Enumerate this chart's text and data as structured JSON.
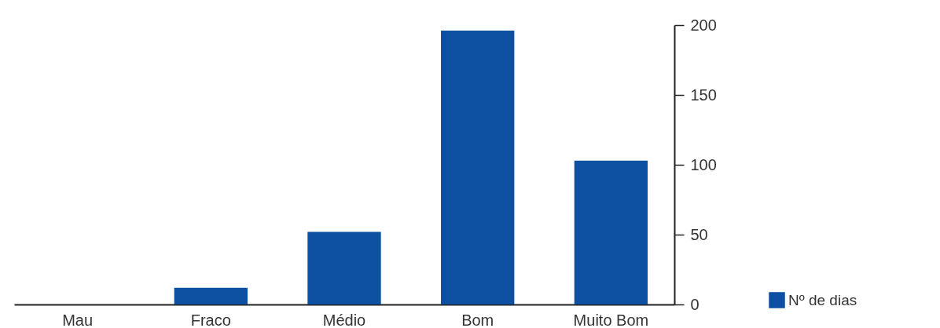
{
  "chart_data": {
    "type": "bar",
    "categories": [
      "Mau",
      "Fraco",
      "Médio",
      "Bom",
      "Muito Bom"
    ],
    "series": [
      {
        "name": "Nº de dias",
        "color": "#0d4fa0",
        "values": [
          0,
          12,
          52,
          196,
          103
        ]
      }
    ],
    "ylim": [
      0,
      200
    ],
    "yticks": [
      0,
      50,
      100,
      150,
      200
    ],
    "grid": false,
    "legend": "bottom right"
  }
}
